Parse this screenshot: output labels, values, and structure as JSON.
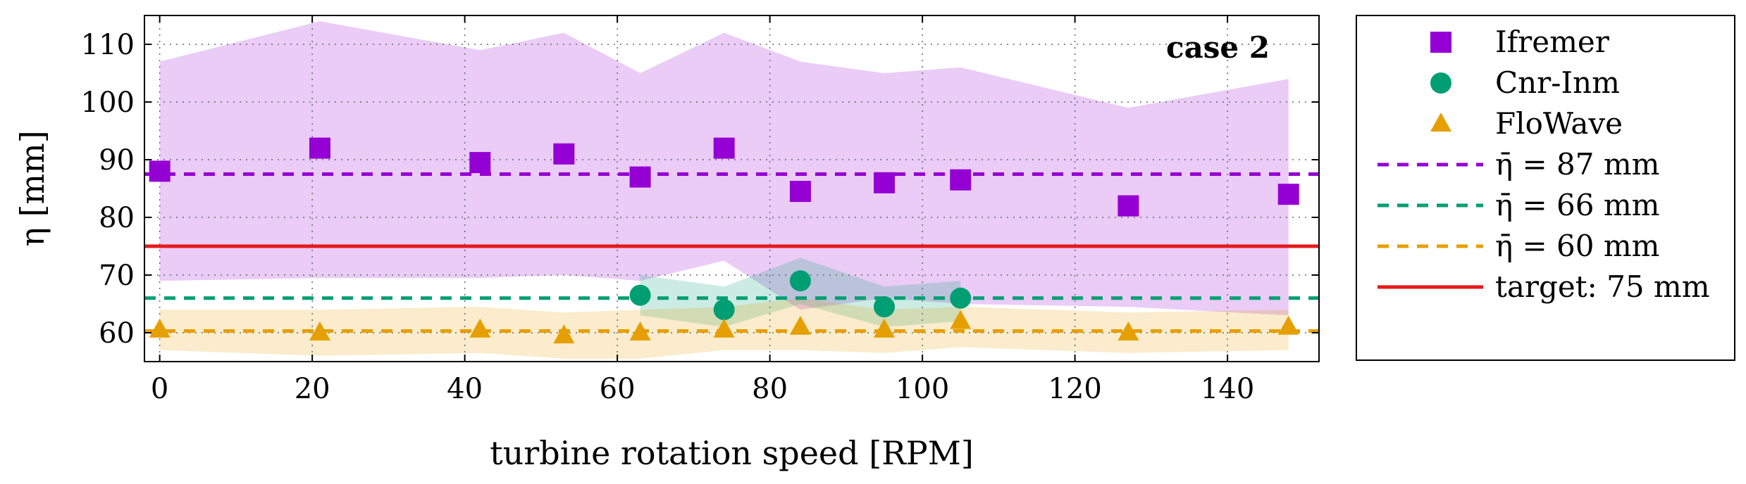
{
  "chart_data": {
    "type": "scatter",
    "annotation": "case 2",
    "xlabel": "turbine rotation speed [RPM]",
    "ylabel": "η [mm]",
    "xlim": [
      -2,
      152
    ],
    "ylim": [
      55,
      115
    ],
    "xticks": [
      0,
      20,
      40,
      60,
      80,
      100,
      120,
      140
    ],
    "yticks": [
      60,
      70,
      80,
      90,
      100,
      110
    ],
    "grid": "dotted",
    "legend_position": "outside-right",
    "series": [
      {
        "name": "Ifremer",
        "marker": "square",
        "color": "#9400d3",
        "x": [
          0,
          21,
          42,
          53,
          63,
          74,
          84,
          95,
          105,
          127,
          148
        ],
        "y": [
          88,
          92,
          89.5,
          91,
          87,
          92,
          84.5,
          86,
          86.5,
          82,
          84
        ],
        "band_upper": [
          107,
          114,
          109,
          112,
          105,
          112,
          107,
          105,
          106,
          99,
          104
        ],
        "band_lower": [
          69,
          69.5,
          69.5,
          70,
          69,
          72.5,
          64,
          66,
          65,
          64.5,
          63
        ]
      },
      {
        "name": "Cnr-Inm",
        "marker": "circle",
        "color": "#009e73",
        "x": [
          63,
          74,
          84,
          95,
          105
        ],
        "y": [
          66.5,
          64,
          69,
          64.5,
          66
        ],
        "band_upper": [
          70,
          68,
          73,
          68,
          69
        ],
        "band_lower": [
          63,
          61,
          65,
          61,
          62
        ]
      },
      {
        "name": "FloWave",
        "marker": "triangle",
        "color": "#e69f00",
        "x": [
          0,
          21,
          42,
          53,
          63,
          74,
          84,
          95,
          105,
          127,
          148
        ],
        "y": [
          60.5,
          60,
          60.5,
          59.5,
          60,
          60.5,
          61,
          60.5,
          62,
          60,
          61
        ],
        "band_upper": [
          64,
          64,
          64.5,
          63.5,
          64,
          64.5,
          66,
          64,
          64.5,
          63.5,
          64
        ],
        "band_lower": [
          57,
          56,
          56.5,
          55.5,
          55.5,
          57,
          57,
          56.5,
          57.5,
          56.5,
          57
        ]
      }
    ],
    "reference_lines": [
      {
        "label": "η̄ = 87 mm",
        "y": 87.5,
        "style": "dashed",
        "color": "#9400d3"
      },
      {
        "label": "η̄ = 66 mm",
        "y": 66,
        "style": "dashed",
        "color": "#009e73"
      },
      {
        "label": "η̄ = 60 mm",
        "y": 60.3,
        "style": "dashed",
        "color": "#e69f00"
      },
      {
        "label": "target:  75 mm",
        "y": 75,
        "style": "solid",
        "color": "#e41a1c"
      }
    ]
  }
}
